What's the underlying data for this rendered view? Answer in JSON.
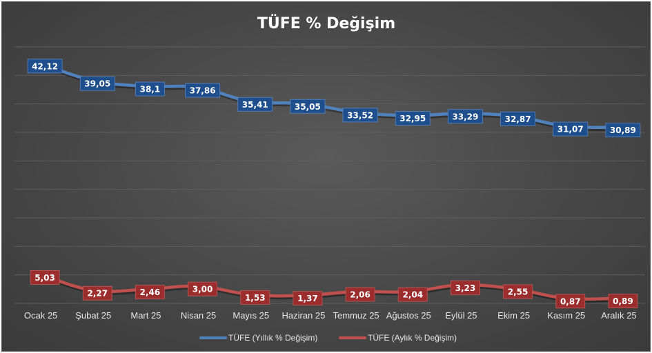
{
  "chart_data": {
    "type": "line",
    "title": "TÜFE % Değişim",
    "categories": [
      "Ocak 25",
      "Şubat 25",
      "Mart 25",
      "Nisan 25",
      "Mayıs 25",
      "Haziran 25",
      "Temmuz 25",
      "Ağustos 25",
      "Eylül 25",
      "Ekim 25",
      "Kasım 25",
      "Aralık 25"
    ],
    "series": [
      {
        "name": "TÜFE (Yıllık % Değişim)",
        "color": "#4f81bd",
        "label_bg": "#1f4e8c",
        "values": [
          42.12,
          39.05,
          38.1,
          37.86,
          35.41,
          35.05,
          33.52,
          32.95,
          33.29,
          32.87,
          31.07,
          30.89
        ],
        "labels": [
          "42,12",
          "39,05",
          "38,1",
          "37,86",
          "35,41",
          "35,05",
          "33,52",
          "32,95",
          "33,29",
          "32,87",
          "31,07",
          "30,89"
        ]
      },
      {
        "name": "TÜFE (Aylık % Değişim)",
        "color": "#c0504d",
        "label_bg": "#9b2d2d",
        "values": [
          5.03,
          2.27,
          2.46,
          3.0,
          1.53,
          1.37,
          2.06,
          2.04,
          3.23,
          2.55,
          0.87,
          0.89
        ],
        "labels": [
          "5,03",
          "2,27",
          "2,46",
          "3,00",
          "1,53",
          "1,37",
          "2,06",
          "2,04",
          "3,23",
          "2,55",
          "0,87",
          "0,89"
        ]
      }
    ],
    "ylim": [
      0,
      45
    ],
    "grid": true,
    "legend_position": "bottom"
  }
}
